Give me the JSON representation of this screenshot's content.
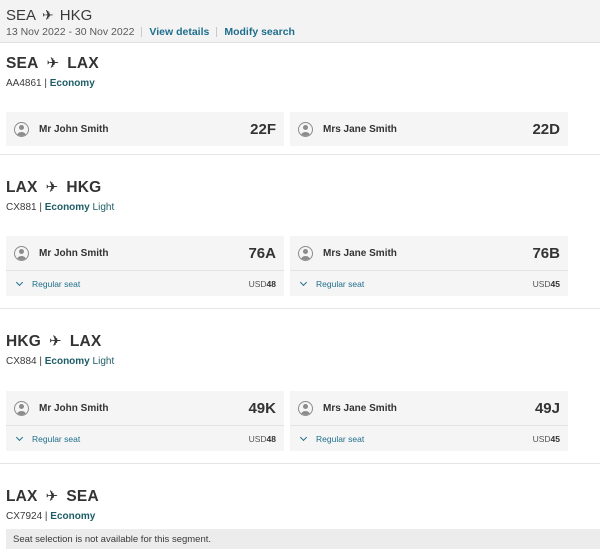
{
  "header": {
    "origin": "SEA",
    "destination": "HKG",
    "dates": "13 Nov 2022 - 30 Nov 2022",
    "view_details": "View details",
    "modify_search": "Modify search"
  },
  "segments": [
    {
      "origin": "SEA",
      "destination": "LAX",
      "flight": "AA4861",
      "cabin": "Economy",
      "cabin_sub": "",
      "passengers": [
        {
          "name": "Mr John Smith",
          "seat": "22F"
        },
        {
          "name": "Mrs Jane Smith",
          "seat": "22D"
        }
      ]
    },
    {
      "origin": "LAX",
      "destination": "HKG",
      "flight": "CX881",
      "cabin": "Economy",
      "cabin_sub": "Light",
      "passengers": [
        {
          "name": "Mr John Smith",
          "seat": "76A",
          "seat_type": "Regular seat",
          "currency": "USD",
          "amount": "48"
        },
        {
          "name": "Mrs Jane Smith",
          "seat": "76B",
          "seat_type": "Regular seat",
          "currency": "USD",
          "amount": "45"
        }
      ]
    },
    {
      "origin": "HKG",
      "destination": "LAX",
      "flight": "CX884",
      "cabin": "Economy",
      "cabin_sub": "Light",
      "passengers": [
        {
          "name": "Mr John Smith",
          "seat": "49K",
          "seat_type": "Regular seat",
          "currency": "USD",
          "amount": "48"
        },
        {
          "name": "Mrs Jane Smith",
          "seat": "49J",
          "seat_type": "Regular seat",
          "currency": "USD",
          "amount": "45"
        }
      ]
    },
    {
      "origin": "LAX",
      "destination": "SEA",
      "flight": "CX7924",
      "cabin": "Economy",
      "cabin_sub": "",
      "notice": "Seat selection is not available for this segment."
    }
  ],
  "icons": {
    "plane": "airplane-icon",
    "avatar": "person-icon",
    "chevron": "chevron-down-icon"
  },
  "colors": {
    "link": "#1f6e8c",
    "cabin": "#1d5c66",
    "card_bg": "#f5f5f5"
  }
}
